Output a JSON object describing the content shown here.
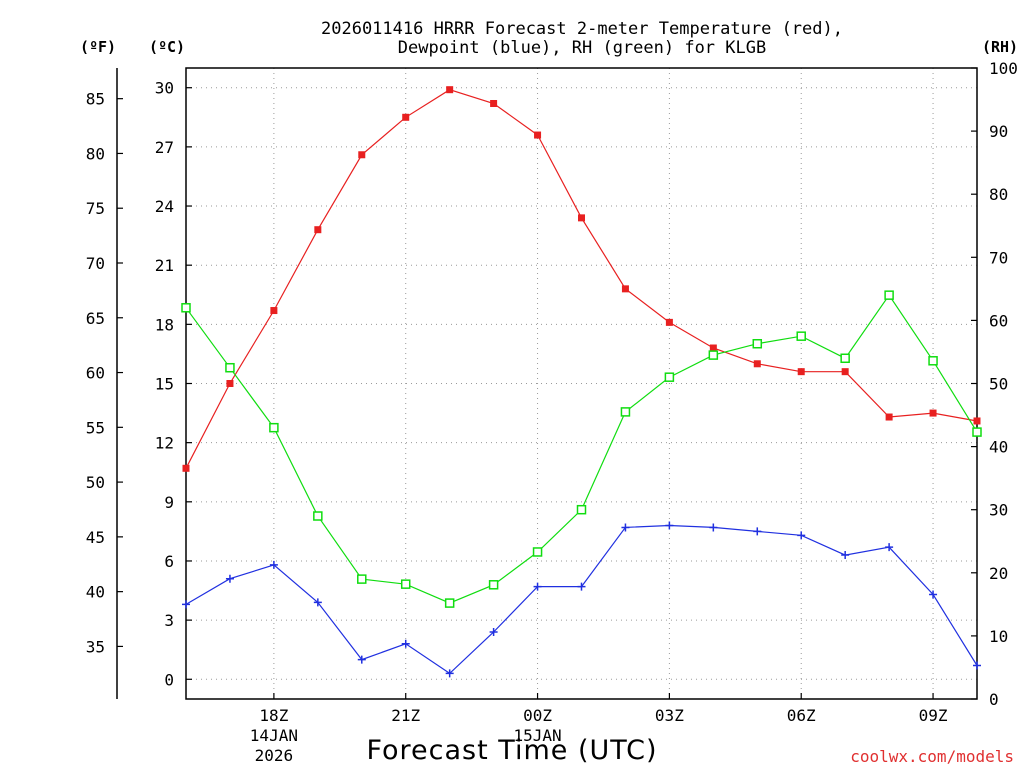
{
  "chart_data": {
    "type": "line",
    "title_line1": "2026011416 HRRR Forecast 2-meter Temperature (red),",
    "title_line2": "Dewpoint (blue), RH (green) for KLGB",
    "xlabel": "Forecast Time (UTC)",
    "credit": "coolwx.com/models",
    "unit_f": "(ºF)",
    "unit_c": "(ºC)",
    "unit_rh": "(RH)",
    "x_hours": [
      16,
      17,
      18,
      19,
      20,
      21,
      22,
      23,
      24,
      25,
      26,
      27,
      28,
      29,
      30,
      31,
      32,
      33,
      34
    ],
    "xlim": [
      16,
      34
    ],
    "x_ticks": [
      {
        "hour": 18,
        "label": "18Z"
      },
      {
        "hour": 21,
        "label": "21Z"
      },
      {
        "hour": 24,
        "label": "00Z"
      },
      {
        "hour": 27,
        "label": "03Z"
      },
      {
        "hour": 30,
        "label": "06Z"
      },
      {
        "hour": 33,
        "label": "09Z"
      }
    ],
    "date_labels": [
      {
        "hour": 18,
        "line1": "14JAN",
        "line2": "2026"
      },
      {
        "hour": 24,
        "line1": "15JAN",
        "line2": ""
      }
    ],
    "ylim_c": [
      -1,
      31
    ],
    "ylim_rh": [
      0,
      100
    ],
    "y_ticks_c": [
      0,
      3,
      6,
      9,
      12,
      15,
      18,
      21,
      24,
      27,
      30
    ],
    "y_ticks_f": [
      35,
      40,
      45,
      50,
      55,
      60,
      65,
      70,
      75,
      80,
      85
    ],
    "y_ticks_rh": [
      0,
      10,
      20,
      30,
      40,
      50,
      60,
      70,
      80,
      90,
      100
    ],
    "series": [
      {
        "name": "Temperature",
        "color": "#e82020",
        "marker": "filled-square",
        "axis": "c",
        "values": [
          10.7,
          15.0,
          18.7,
          22.8,
          26.6,
          28.5,
          29.9,
          29.2,
          27.6,
          23.4,
          19.8,
          18.1,
          16.8,
          16.0,
          15.6,
          15.6,
          13.3,
          13.5,
          13.1
        ]
      },
      {
        "name": "Dewpoint",
        "color": "#2030e0",
        "marker": "plus",
        "axis": "c",
        "values": [
          3.8,
          5.1,
          5.8,
          3.9,
          1.0,
          1.8,
          0.3,
          2.4,
          4.7,
          4.7,
          7.7,
          7.8,
          7.7,
          7.5,
          7.3,
          6.3,
          6.7,
          4.3,
          0.7
        ]
      },
      {
        "name": "RH",
        "color": "#10dd10",
        "marker": "open-square",
        "axis": "rh",
        "values": [
          62,
          52.5,
          43,
          29,
          19,
          18.2,
          15.2,
          18.1,
          23.3,
          30,
          45.5,
          51,
          54.5,
          56.3,
          57.5,
          54,
          64,
          53.6,
          42.3
        ]
      }
    ]
  }
}
